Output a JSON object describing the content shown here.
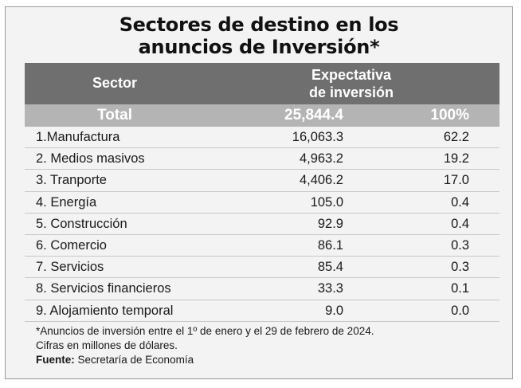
{
  "title_line1": "Sectores de destino en los",
  "title_line2": "anuncios de Inversión*",
  "header": {
    "sector": "Sector",
    "expectativa_line1": "Expectativa",
    "expectativa_line2": "de inversión"
  },
  "total": {
    "label": "Total",
    "value": "25,844.4",
    "percent": "100%"
  },
  "chart_data": {
    "type": "table",
    "columns": [
      "Sector",
      "Expectativa de inversión",
      ""
    ],
    "rows": [
      {
        "label": "1.Manufactura",
        "value": "16,063.3",
        "percent": "62.2"
      },
      {
        "label": "2. Medios masivos",
        "value": "4,963.2",
        "percent": "19.2"
      },
      {
        "label": "3. Tranporte",
        "value": "4,406.2",
        "percent": "17.0"
      },
      {
        "label": "4. Energía",
        "value": "105.0",
        "percent": "0.4"
      },
      {
        "label": "5. Construcción",
        "value": "92.9",
        "percent": "0.4"
      },
      {
        "label": "6. Comercio",
        "value": "86.1",
        "percent": "0.3"
      },
      {
        "label": "7. Servicios",
        "value": "85.4",
        "percent": "0.3"
      },
      {
        "label": "8. Servicios financieros",
        "value": "33.3",
        "percent": "0.1"
      },
      {
        "label": "9. Alojamiento temporal",
        "value": "9.0",
        "percent": "0.0"
      }
    ]
  },
  "notes": {
    "line1": "*Anuncios de inversión entre el 1º de enero y el 29 de febrero de 2024.",
    "line2": "Cifras en millones de dólares.",
    "source_label": "Fuente:",
    "source_text": " Secretaría de Economía"
  },
  "colors": {
    "header_bg": "#6f6f6f",
    "total_bg": "#b4b4b4",
    "panel_bg": "#f3f3f3"
  }
}
